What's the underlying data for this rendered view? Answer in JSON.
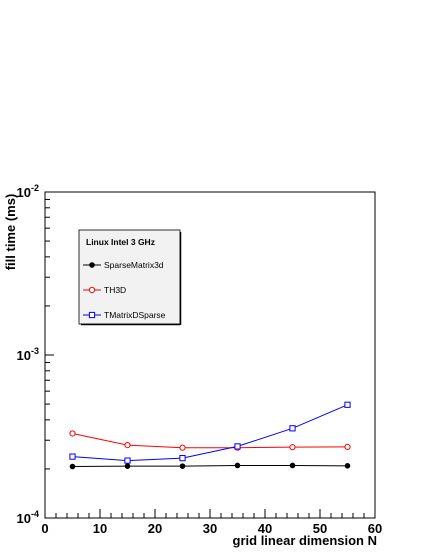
{
  "chart_data": {
    "type": "line",
    "title": "",
    "xlabel": "grid linear dimension N",
    "ylabel": "fill time (ms)",
    "xlim": [
      0,
      60
    ],
    "ylim": [
      0.0001,
      0.01
    ],
    "y_scale": "log",
    "grid": false,
    "x": [
      5,
      15,
      25,
      35,
      45,
      55
    ],
    "x_ticks": [
      "0",
      "10",
      "20",
      "30",
      "40",
      "50",
      "60"
    ],
    "y_ticks": [
      {
        "base": "10",
        "exp": "-4"
      },
      {
        "base": "10",
        "exp": "-3"
      },
      {
        "base": "10",
        "exp": "-2"
      }
    ],
    "legend": {
      "title": "Linux Intel 3 GHz",
      "placement": "top-left"
    },
    "series": [
      {
        "name": "SparseMatrix3d",
        "color": "#000000",
        "marker": "filled-circle",
        "values": [
          0.000207,
          0.000208,
          0.000208,
          0.00021,
          0.00021,
          0.000209
        ]
      },
      {
        "name": "TH3D",
        "color": "#ff0000",
        "marker": "open-circle",
        "values": [
          0.00033,
          0.00028,
          0.00027,
          0.00027,
          0.000272,
          0.000273
        ]
      },
      {
        "name": "TMatrixDSparse",
        "color": "#0000ff",
        "marker": "open-square",
        "values": [
          0.000238,
          0.000225,
          0.000233,
          0.000275,
          0.000355,
          0.000495
        ]
      }
    ]
  }
}
